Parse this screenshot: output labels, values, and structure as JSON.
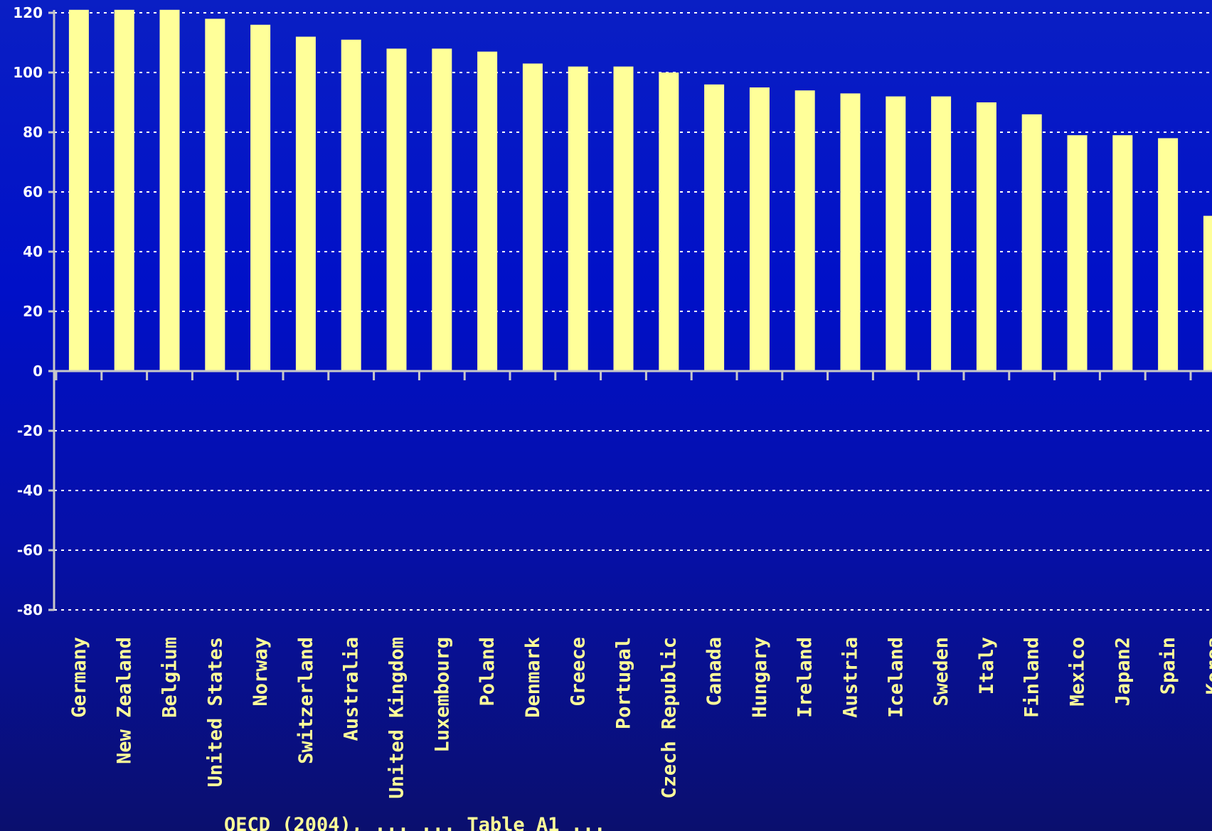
{
  "chart_data": {
    "type": "bar",
    "categories": [
      "Germany",
      "New Zealand",
      "Belgium",
      "United States",
      "Norway",
      "Switzerland",
      "Australia",
      "United Kingdom",
      "Luxembourg",
      "Poland",
      "Denmark",
      "Greece",
      "Portugal",
      "Czech Republic",
      "Canada",
      "Hungary",
      "Ireland",
      "Austria",
      "Iceland",
      "Sweden",
      "Italy",
      "Finland",
      "Mexico",
      "Japan2",
      "Spain",
      "Korea"
    ],
    "values": [
      121,
      121,
      121,
      118,
      116,
      112,
      111,
      108,
      108,
      107,
      103,
      102,
      102,
      100,
      96,
      95,
      94,
      93,
      92,
      92,
      90,
      86,
      79,
      79,
      78,
      52
    ],
    "ylim": [
      -80,
      120
    ],
    "yticks": [
      120,
      100,
      80,
      60,
      40,
      20,
      0,
      -20,
      -40,
      -60,
      -80
    ],
    "ytick_labels": [
      "120",
      "100",
      "80",
      "60",
      "40",
      "20",
      "0",
      "-20",
      "-40",
      "-60",
      "-80"
    ],
    "grid": true,
    "colors": {
      "bar": "#ffff99",
      "label": "#ffff99",
      "tick": "#ffffff",
      "grid": "#ffffff",
      "axis": "#c8c8c8"
    }
  },
  "source_note": "OECD (2004), ... ... Table A1 ..."
}
